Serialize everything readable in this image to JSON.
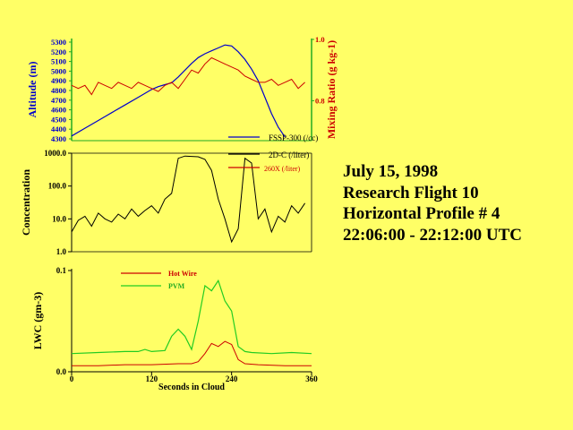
{
  "title_block": {
    "line1": "July 15, 1998",
    "line2": "Research Flight 10",
    "line3": "Horizontal Profile # 4",
    "line4": "22:06:00 - 22:12:00 UTC"
  },
  "colors": {
    "background": "#ffff66",
    "altitude": "#0000cc",
    "mixing_ratio": "#cc0000",
    "axis_green": "#22aa22",
    "black": "#000000",
    "hot_wire": "#cc0000",
    "pvm": "#22cc22"
  },
  "chart_data": [
    {
      "type": "line",
      "xlim": [
        0,
        360
      ],
      "y_left": {
        "label": "Altitude (m)",
        "ylim": [
          4300,
          5300
        ],
        "ticks": [
          "4300",
          "4400",
          "4500",
          "4600",
          "4700",
          "4800",
          "4900",
          "5000",
          "5100",
          "5200",
          "5300"
        ]
      },
      "y_right": {
        "label": "Mixing Ratio (g kg-1)",
        "ylim": [
          0.5,
          1.0
        ],
        "ticks": [
          "1.0",
          "0.8"
        ]
      },
      "series": [
        {
          "name": "FSSP-300 (/cc)",
          "axis": "left",
          "x": [
            0,
            20,
            40,
            60,
            80,
            100,
            120,
            130,
            140,
            150,
            160,
            170,
            180,
            190,
            200,
            210,
            220,
            230,
            240,
            250,
            260,
            270,
            280,
            290,
            300,
            310,
            320
          ],
          "y": [
            4330,
            4410,
            4490,
            4570,
            4650,
            4730,
            4810,
            4840,
            4860,
            4880,
            4940,
            5010,
            5080,
            5140,
            5180,
            5210,
            5240,
            5270,
            5260,
            5200,
            5120,
            5020,
            4900,
            4730,
            4560,
            4420,
            4320
          ]
        },
        {
          "axis": "right",
          "x": [
            0,
            10,
            20,
            30,
            40,
            50,
            60,
            70,
            80,
            90,
            100,
            110,
            120,
            130,
            140,
            150,
            160,
            170,
            180,
            190,
            200,
            210,
            220,
            230,
            240,
            250,
            260,
            270,
            280,
            290,
            300,
            310,
            320,
            330,
            340,
            350
          ],
          "y": [
            0.85,
            0.84,
            0.85,
            0.82,
            0.86,
            0.85,
            0.84,
            0.86,
            0.85,
            0.84,
            0.86,
            0.85,
            0.84,
            0.83,
            0.85,
            0.86,
            0.84,
            0.87,
            0.9,
            0.89,
            0.92,
            0.94,
            0.93,
            0.92,
            0.91,
            0.9,
            0.88,
            0.87,
            0.86,
            0.86,
            0.87,
            0.85,
            0.86,
            0.87,
            0.84,
            0.86
          ]
        }
      ]
    },
    {
      "type": "line",
      "xlim": [
        0,
        360
      ],
      "ylabel": "Concentration",
      "yscale": "log",
      "ylim": [
        1.0,
        1000.0
      ],
      "yticks": [
        "1000.0",
        "100.0",
        "10.0",
        "1.0"
      ],
      "legend": [
        "FSSP-300 (/cc)",
        "2D-C (/liter)",
        "260X (/liter)"
      ],
      "series": [
        {
          "name": "2D-C (/liter)",
          "x": [
            0,
            10,
            20,
            30,
            40,
            50,
            60,
            70,
            80,
            90,
            100,
            110,
            120,
            130,
            140,
            150,
            160,
            170,
            180,
            190,
            200,
            210,
            220,
            230,
            240,
            250,
            260,
            270,
            280,
            290,
            300,
            310,
            320,
            330,
            340,
            350
          ],
          "y": [
            4,
            9,
            12,
            6,
            15,
            10,
            8,
            14,
            10,
            20,
            12,
            18,
            25,
            15,
            40,
            60,
            700,
            820,
            800,
            780,
            650,
            300,
            40,
            10,
            2,
            5,
            700,
            500,
            10,
            20,
            4,
            12,
            8,
            25,
            15,
            30
          ]
        }
      ]
    },
    {
      "type": "line",
      "xlim": [
        0,
        360
      ],
      "xlabel": "Seconds in Cloud",
      "xticks": [
        "0",
        "120",
        "240",
        "360"
      ],
      "ylabel": "LWC (gm-3)",
      "ylim": [
        0.0,
        0.1
      ],
      "yticks": [
        "0.1",
        "0.0"
      ],
      "legend": [
        "Hot Wire",
        "PVM"
      ],
      "series": [
        {
          "name": "Hot Wire",
          "x": [
            0,
            40,
            80,
            120,
            160,
            180,
            190,
            200,
            210,
            220,
            230,
            240,
            250,
            260,
            280,
            320,
            360
          ],
          "y": [
            0.006,
            0.006,
            0.007,
            0.007,
            0.008,
            0.008,
            0.01,
            0.018,
            0.028,
            0.025,
            0.03,
            0.027,
            0.012,
            0.008,
            0.007,
            0.006,
            0.006
          ]
        },
        {
          "name": "PVM",
          "x": [
            0,
            40,
            80,
            100,
            110,
            120,
            140,
            150,
            160,
            170,
            180,
            190,
            200,
            210,
            220,
            230,
            240,
            250,
            260,
            270,
            300,
            330,
            360
          ],
          "y": [
            0.018,
            0.019,
            0.02,
            0.02,
            0.022,
            0.02,
            0.021,
            0.035,
            0.042,
            0.035,
            0.022,
            0.05,
            0.085,
            0.08,
            0.09,
            0.07,
            0.06,
            0.025,
            0.02,
            0.019,
            0.018,
            0.019,
            0.018
          ]
        }
      ]
    }
  ]
}
